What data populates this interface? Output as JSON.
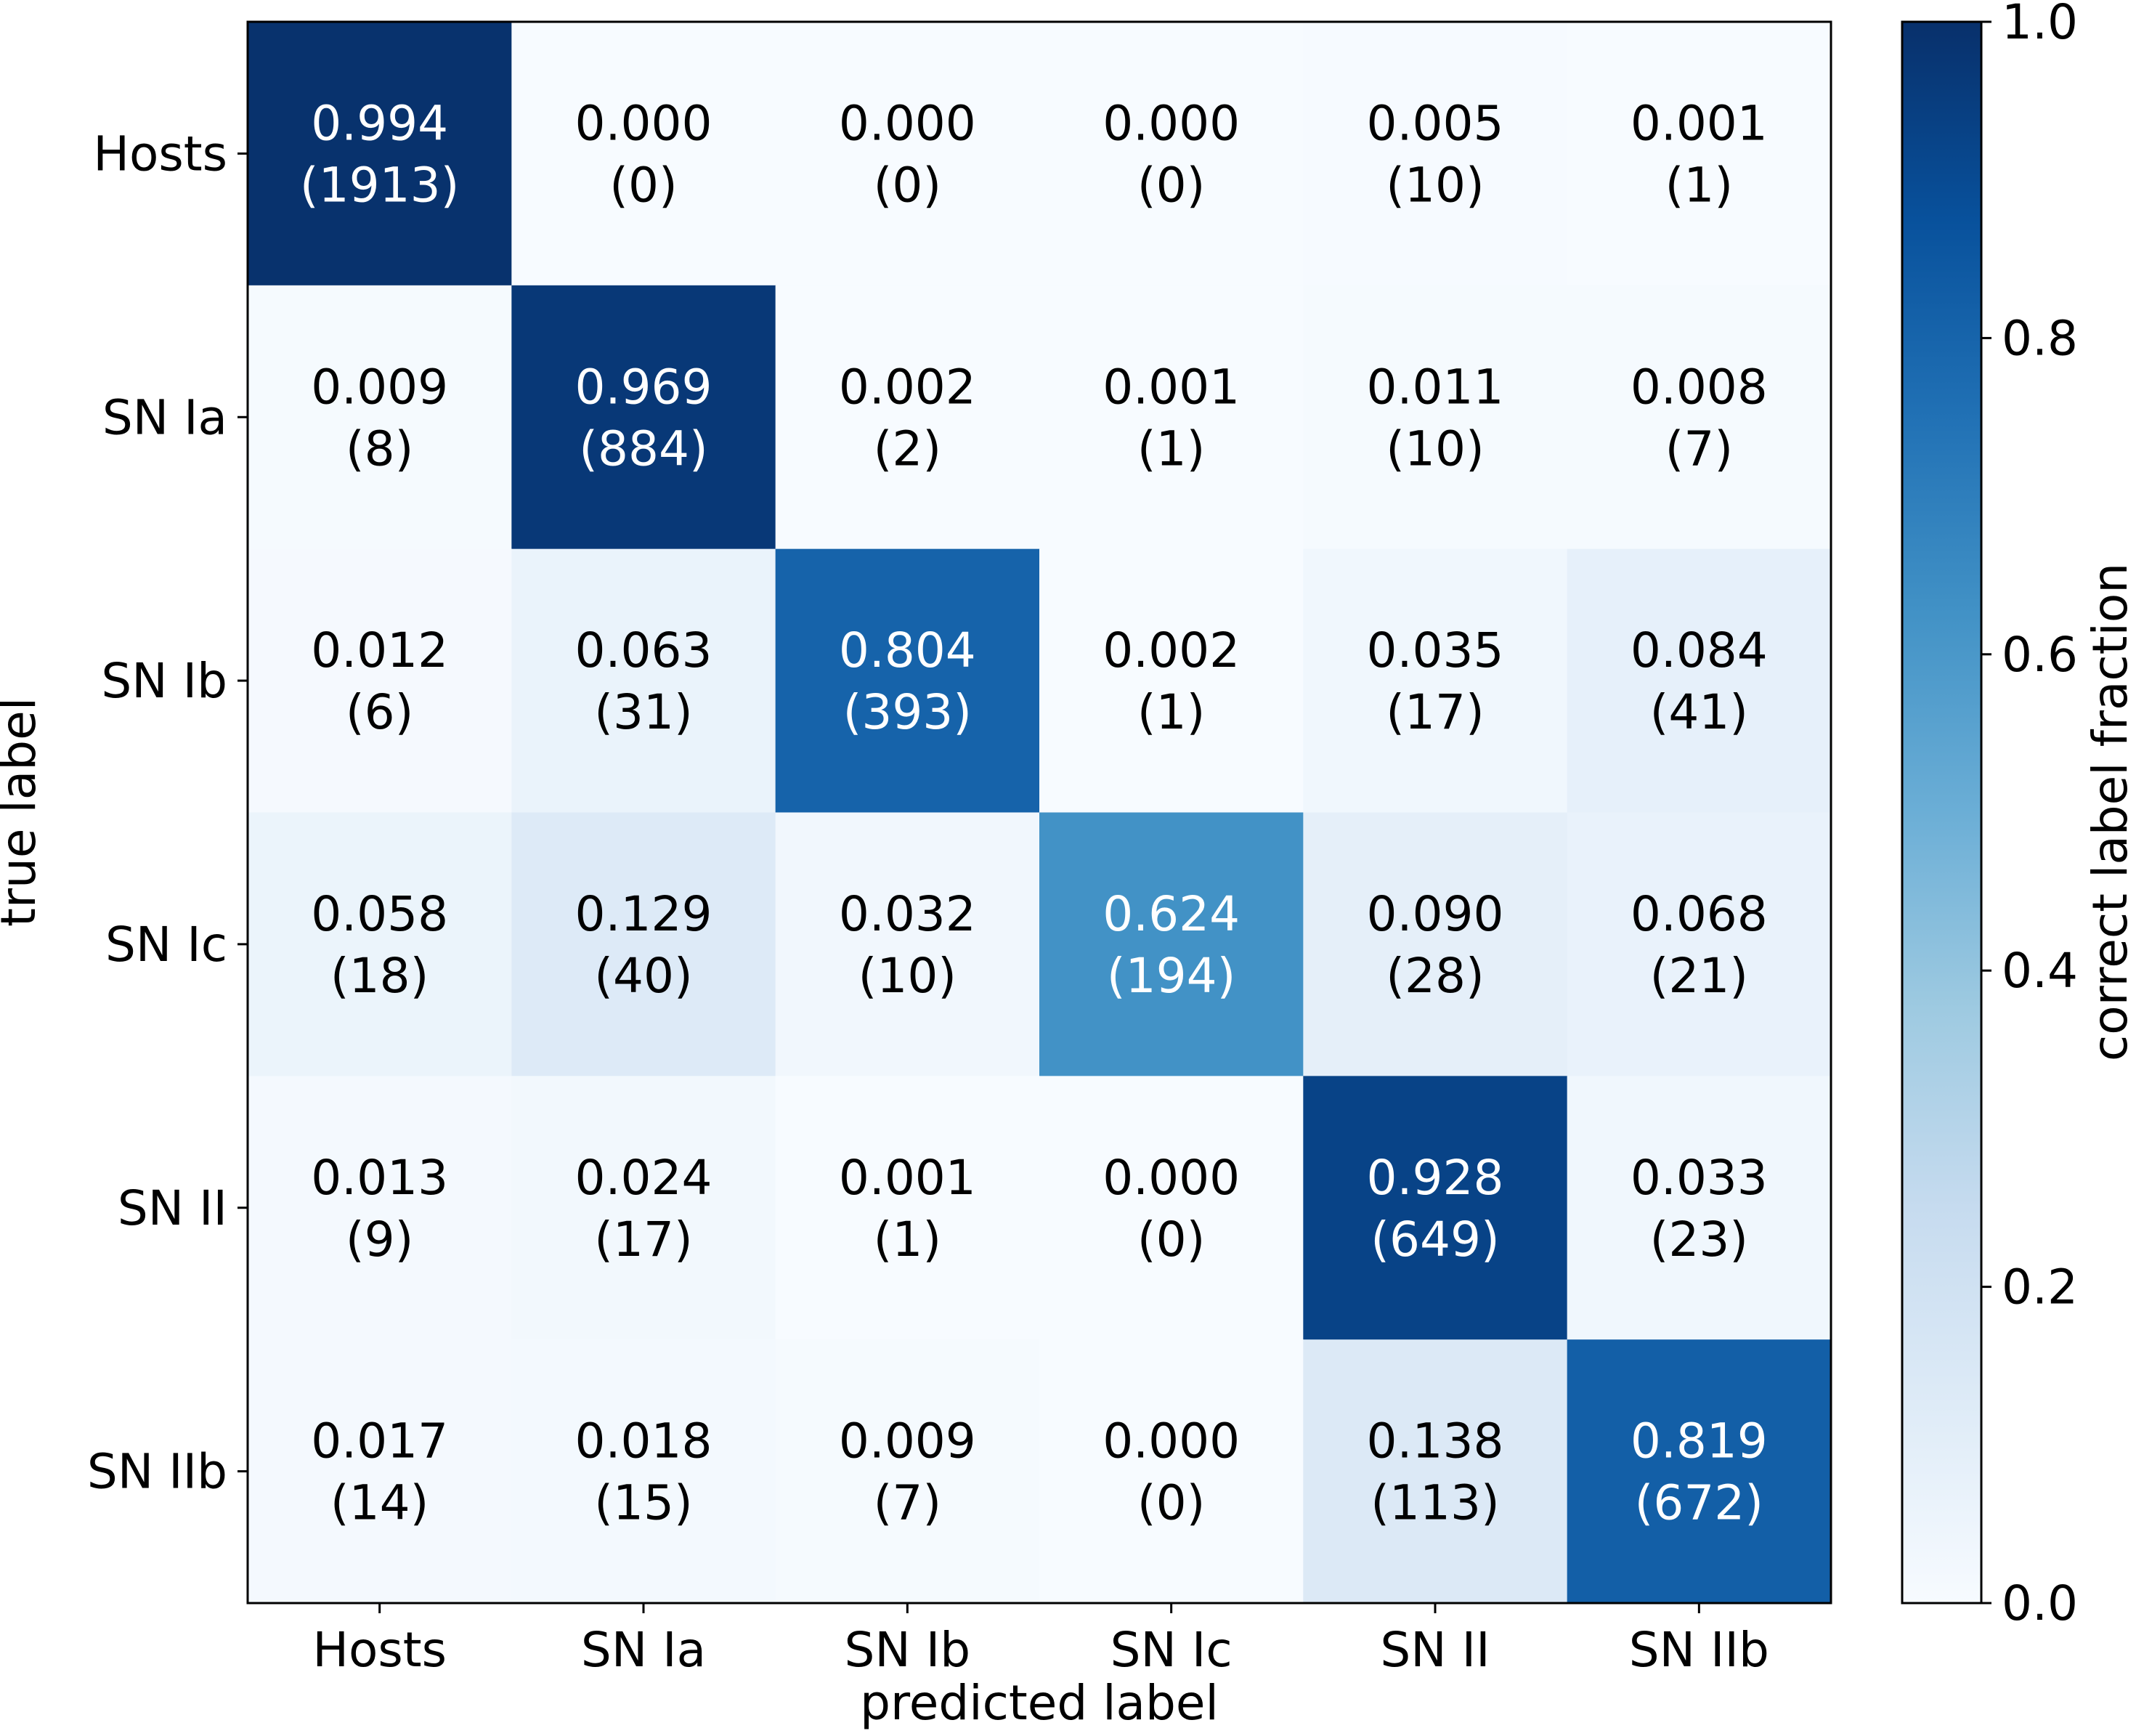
{
  "chart_data": {
    "type": "heatmap",
    "title": "",
    "xlabel": "predicted label",
    "ylabel": "true label",
    "x_categories": [
      "Hosts",
      "SN Ia",
      "SN Ib",
      "SN Ic",
      "SN II",
      "SN IIb"
    ],
    "y_categories": [
      "Hosts",
      "SN Ia",
      "SN Ib",
      "SN Ic",
      "SN II",
      "SN IIb"
    ],
    "fractions": [
      [
        0.994,
        0.0,
        0.0,
        0.0,
        0.005,
        0.001
      ],
      [
        0.009,
        0.969,
        0.002,
        0.001,
        0.011,
        0.008
      ],
      [
        0.012,
        0.063,
        0.804,
        0.002,
        0.035,
        0.084
      ],
      [
        0.058,
        0.129,
        0.032,
        0.624,
        0.09,
        0.068
      ],
      [
        0.013,
        0.024,
        0.001,
        0.0,
        0.928,
        0.033
      ],
      [
        0.017,
        0.018,
        0.009,
        0.0,
        0.138,
        0.819
      ]
    ],
    "counts": [
      [
        1913,
        0,
        0,
        0,
        10,
        1
      ],
      [
        8,
        884,
        2,
        1,
        10,
        7
      ],
      [
        6,
        31,
        393,
        1,
        17,
        41
      ],
      [
        18,
        40,
        10,
        194,
        28,
        21
      ],
      [
        9,
        17,
        1,
        0,
        649,
        23
      ],
      [
        14,
        15,
        7,
        0,
        113,
        672
      ]
    ],
    "colormap": "Blues",
    "colorbar": {
      "label": "correct label fraction",
      "range": [
        0.0,
        1.0
      ],
      "ticks": [
        "0.0",
        "0.2",
        "0.4",
        "0.6",
        "0.8",
        "1.0"
      ]
    },
    "text_colors": {
      "light_cell": "#000000",
      "dark_cell": "#ffffff"
    }
  }
}
